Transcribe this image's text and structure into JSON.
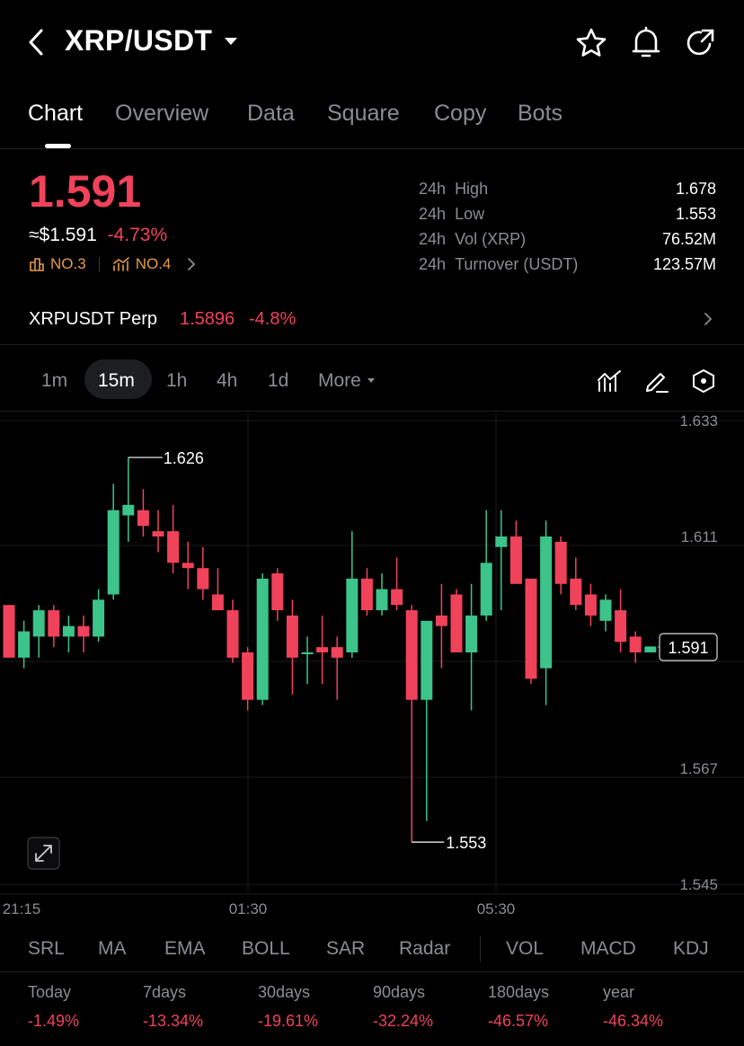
{
  "header": {
    "title": "XRP/USDT",
    "icons": [
      "back-icon",
      "dropdown-icon",
      "star-icon",
      "bell-icon",
      "share-icon"
    ]
  },
  "tabs": [
    {
      "label": "Chart",
      "active": true
    },
    {
      "label": "Overview"
    },
    {
      "label": "Data"
    },
    {
      "label": "Square"
    },
    {
      "label": "Copy"
    },
    {
      "label": "Bots"
    }
  ],
  "price": {
    "last": "1.591",
    "usd": "≈$1.591",
    "change": "-4.73%",
    "rank1": "NO.3",
    "rank2": "NO.4"
  },
  "stats": [
    {
      "period": "24h",
      "label": "High",
      "value": "1.678"
    },
    {
      "period": "24h",
      "label": "Low",
      "value": "1.553"
    },
    {
      "period": "24h",
      "label": "Vol (XRP)",
      "value": "76.52M"
    },
    {
      "period": "24h",
      "label": "Turnover (USDT)",
      "value": "123.57M"
    }
  ],
  "perp": {
    "name": "XRPUSDT Perp",
    "price": "1.5896",
    "change": "-4.8%"
  },
  "timeframes": [
    {
      "label": "1m"
    },
    {
      "label": "15m",
      "active": true
    },
    {
      "label": "1h"
    },
    {
      "label": "4h"
    },
    {
      "label": "1d"
    },
    {
      "label": "More"
    }
  ],
  "colors": {
    "up": "#3cc48a",
    "down": "#f0425a",
    "background": "#000000"
  },
  "chart_data": {
    "type": "candlestick",
    "y_ticks": [
      "1.633",
      "1.611",
      "1.567",
      "1.545"
    ],
    "x_ticks": [
      "21:15",
      "01:30",
      "05:30"
    ],
    "ylim": [
      1.545,
      1.633
    ],
    "high_marker": "1.626",
    "low_marker": "1.553",
    "current_price_label": "1.591",
    "candles": [
      {
        "o": 1.598,
        "h": 1.598,
        "l": 1.588,
        "c": 1.588
      },
      {
        "o": 1.588,
        "h": 1.595,
        "l": 1.586,
        "c": 1.593
      },
      {
        "o": 1.592,
        "h": 1.598,
        "l": 1.588,
        "c": 1.597
      },
      {
        "o": 1.597,
        "h": 1.598,
        "l": 1.59,
        "c": 1.592
      },
      {
        "o": 1.592,
        "h": 1.596,
        "l": 1.589,
        "c": 1.594
      },
      {
        "o": 1.594,
        "h": 1.596,
        "l": 1.589,
        "c": 1.592
      },
      {
        "o": 1.592,
        "h": 1.601,
        "l": 1.591,
        "c": 1.599
      },
      {
        "o": 1.6,
        "h": 1.621,
        "l": 1.599,
        "c": 1.616
      },
      {
        "o": 1.615,
        "h": 1.626,
        "l": 1.61,
        "c": 1.617
      },
      {
        "o": 1.616,
        "h": 1.62,
        "l": 1.611,
        "c": 1.613
      },
      {
        "o": 1.612,
        "h": 1.616,
        "l": 1.608,
        "c": 1.611
      },
      {
        "o": 1.612,
        "h": 1.617,
        "l": 1.604,
        "c": 1.606
      },
      {
        "o": 1.606,
        "h": 1.61,
        "l": 1.601,
        "c": 1.605
      },
      {
        "o": 1.605,
        "h": 1.609,
        "l": 1.599,
        "c": 1.601
      },
      {
        "o": 1.6,
        "h": 1.605,
        "l": 1.597,
        "c": 1.597
      },
      {
        "o": 1.597,
        "h": 1.599,
        "l": 1.587,
        "c": 1.588
      },
      {
        "o": 1.589,
        "h": 1.59,
        "l": 1.578,
        "c": 1.58
      },
      {
        "o": 1.58,
        "h": 1.604,
        "l": 1.579,
        "c": 1.603
      },
      {
        "o": 1.604,
        "h": 1.605,
        "l": 1.595,
        "c": 1.597
      },
      {
        "o": 1.596,
        "h": 1.599,
        "l": 1.581,
        "c": 1.588
      },
      {
        "o": 1.589,
        "h": 1.592,
        "l": 1.583,
        "c": 1.589
      },
      {
        "o": 1.59,
        "h": 1.596,
        "l": 1.583,
        "c": 1.589
      },
      {
        "o": 1.59,
        "h": 1.592,
        "l": 1.58,
        "c": 1.588
      },
      {
        "o": 1.589,
        "h": 1.612,
        "l": 1.588,
        "c": 1.603
      },
      {
        "o": 1.603,
        "h": 1.605,
        "l": 1.596,
        "c": 1.597
      },
      {
        "o": 1.597,
        "h": 1.604,
        "l": 1.596,
        "c": 1.601
      },
      {
        "o": 1.601,
        "h": 1.607,
        "l": 1.597,
        "c": 1.598
      },
      {
        "o": 1.597,
        "h": 1.598,
        "l": 1.553,
        "c": 1.58
      },
      {
        "o": 1.58,
        "h": 1.595,
        "l": 1.557,
        "c": 1.595
      },
      {
        "o": 1.596,
        "h": 1.602,
        "l": 1.586,
        "c": 1.594
      },
      {
        "o": 1.6,
        "h": 1.601,
        "l": 1.589,
        "c": 1.589
      },
      {
        "o": 1.589,
        "h": 1.602,
        "l": 1.578,
        "c": 1.596
      },
      {
        "o": 1.596,
        "h": 1.616,
        "l": 1.595,
        "c": 1.606
      },
      {
        "o": 1.609,
        "h": 1.616,
        "l": 1.597,
        "c": 1.611
      },
      {
        "o": 1.611,
        "h": 1.614,
        "l": 1.602,
        "c": 1.602
      },
      {
        "o": 1.603,
        "h": 1.603,
        "l": 1.583,
        "c": 1.584
      },
      {
        "o": 1.586,
        "h": 1.614,
        "l": 1.579,
        "c": 1.611
      },
      {
        "o": 1.61,
        "h": 1.611,
        "l": 1.6,
        "c": 1.602
      },
      {
        "o": 1.603,
        "h": 1.607,
        "l": 1.597,
        "c": 1.598
      },
      {
        "o": 1.6,
        "h": 1.602,
        "l": 1.594,
        "c": 1.596
      },
      {
        "o": 1.595,
        "h": 1.6,
        "l": 1.593,
        "c": 1.599
      },
      {
        "o": 1.597,
        "h": 1.601,
        "l": 1.589,
        "c": 1.591
      },
      {
        "o": 1.592,
        "h": 1.593,
        "l": 1.587,
        "c": 1.589
      },
      {
        "o": 1.589,
        "h": 1.59,
        "l": 1.589,
        "c": 1.59
      }
    ]
  },
  "indicators": [
    "SRL",
    "MA",
    "EMA",
    "BOLL",
    "SAR",
    "Radar",
    "VOL",
    "MACD",
    "KDJ"
  ],
  "performance": [
    {
      "label": "Today",
      "value": "-1.49%"
    },
    {
      "label": "7days",
      "value": "-13.34%"
    },
    {
      "label": "30days",
      "value": "-19.61%"
    },
    {
      "label": "90days",
      "value": "-32.24%"
    },
    {
      "label": "180days",
      "value": "-46.57%"
    },
    {
      "label": "year",
      "value": "-46.34%"
    }
  ]
}
